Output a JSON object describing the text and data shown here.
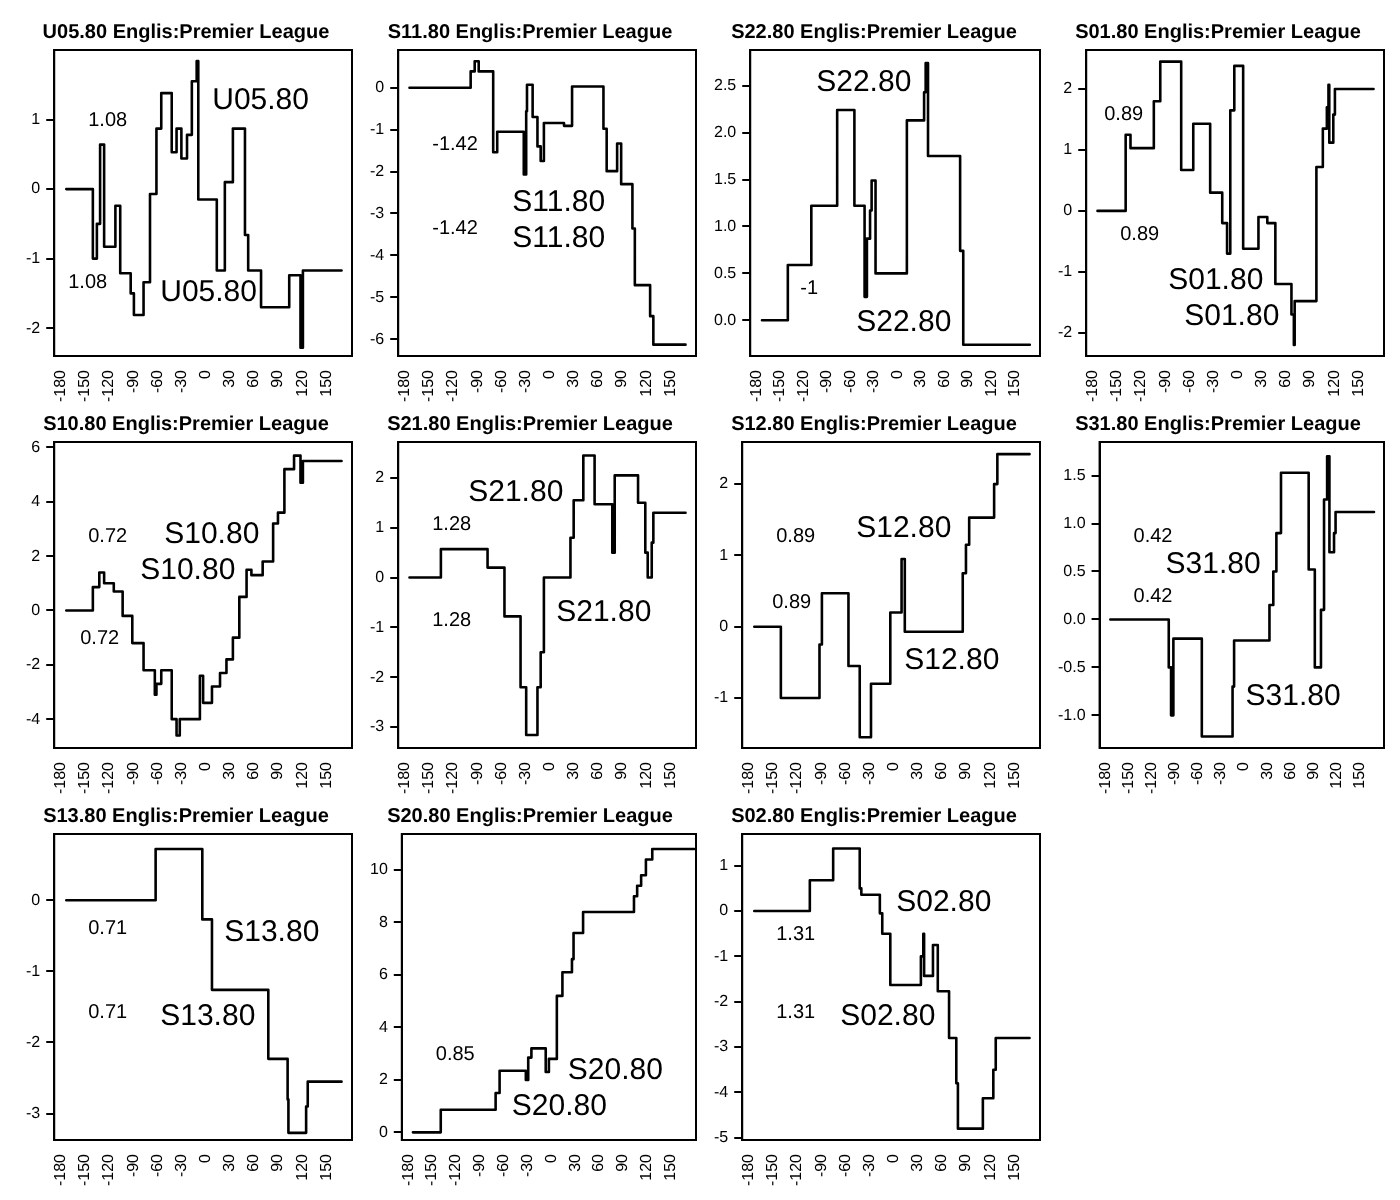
{
  "chart_data": [
    {
      "type": "step",
      "title": "U05.80 Englis:Premier League",
      "color": "#000000",
      "xlim": [
        -188,
        182
      ],
      "xticks": [
        -180,
        -150,
        -120,
        -90,
        -60,
        -30,
        0,
        30,
        60,
        90,
        120,
        150
      ],
      "ylim": [
        -2.4,
        2.0
      ],
      "yticks": [
        -2,
        -1,
        0,
        1
      ],
      "annotations": [
        "1.08",
        "1.08",
        "U05.80",
        "U05.80"
      ],
      "x": [
        -173,
        -140,
        -135,
        -131,
        -126,
        -112,
        -106,
        -93,
        -89,
        -77,
        -69,
        -61,
        -55,
        -42,
        -36,
        -30,
        -23,
        -17,
        -11,
        -9,
        14,
        24,
        34,
        49,
        53,
        69,
        104,
        118,
        121,
        169
      ],
      "values": [
        0,
        -1.0,
        -0.5,
        0.64,
        -0.83,
        -0.24,
        -1.21,
        -1.5,
        -1.81,
        -1.34,
        -0.07,
        0.87,
        1.38,
        0.53,
        0.87,
        0.44,
        0.78,
        1.55,
        1.84,
        -0.15,
        -1.17,
        0.1,
        0.87,
        -0.66,
        -1.17,
        -1.7,
        -1.24,
        -2.28,
        -1.17,
        -1.17
      ]
    },
    {
      "type": "step",
      "title": "S11.80 Englis:Premier League",
      "color": "#000000",
      "xlim": [
        -188,
        182
      ],
      "xticks": [
        -180,
        -150,
        -120,
        -90,
        -60,
        -30,
        0,
        30,
        60,
        90,
        120,
        150
      ],
      "ylim": [
        -6.4,
        0.9
      ],
      "yticks": [
        -6,
        -5,
        -4,
        -3,
        -2,
        -1,
        0
      ],
      "annotations": [
        "-1.42",
        "-1.42",
        "S11.80",
        "S11.80"
      ],
      "x": [
        -174,
        -98,
        -93,
        -88,
        -70,
        -65,
        -32,
        -29,
        -28,
        -21,
        -15,
        -11,
        -7,
        -3,
        18,
        28,
        67,
        71,
        84,
        89,
        103,
        106,
        125,
        129,
        169
      ],
      "values": [
        0,
        0.39,
        0.63,
        0.39,
        -1.54,
        -1.05,
        -2.07,
        -0.56,
        0.07,
        -0.7,
        -1.4,
        -1.75,
        -0.84,
        -0.84,
        -0.91,
        0.03,
        -0.98,
        -1.99,
        -1.33,
        -2.3,
        -3.36,
        -4.71,
        -5.45,
        -6.13,
        -6.13
      ]
    },
    {
      "type": "step",
      "title": "S22.80 Englis:Premier League",
      "color": "#000000",
      "xlim": [
        -188,
        182
      ],
      "xticks": [
        -180,
        -150,
        -120,
        -90,
        -60,
        -30,
        0,
        30,
        60,
        90,
        120,
        150
      ],
      "ylim": [
        -0.38,
        2.88
      ],
      "yticks": [
        {
          "value": 0,
          "label": "0.0"
        },
        {
          "value": 0.5,
          "label": "0.5"
        },
        {
          "value": 1,
          "label": "1.0"
        },
        {
          "value": 1.5,
          "label": "1.5"
        },
        {
          "value": 2,
          "label": "2.0"
        },
        {
          "value": 2.5,
          "label": "2.5"
        }
      ],
      "annotations": [
        "-1",
        "S22.80",
        "S22.80"
      ],
      "x": [
        -173,
        -140,
        -110,
        -77,
        -55,
        -42,
        -39,
        -35,
        -33,
        -28,
        12,
        34,
        36,
        39,
        80,
        84,
        169
      ],
      "values": [
        0,
        0.59,
        1.22,
        2.24,
        1.22,
        0.25,
        0.87,
        1.17,
        1.49,
        0.5,
        2.13,
        2.43,
        2.74,
        1.75,
        0.74,
        -0.26,
        -0.26
      ]
    },
    {
      "type": "step",
      "title": "S01.80 Englis:Premier League",
      "color": "#000000",
      "xlim": [
        -188,
        182
      ],
      "xticks": [
        -180,
        -150,
        -120,
        -90,
        -60,
        -30,
        0,
        30,
        60,
        90,
        120,
        150
      ],
      "ylim": [
        -2.38,
        2.64
      ],
      "yticks": [
        -2,
        -1,
        0,
        1,
        2
      ],
      "annotations": [
        "0.89",
        "0.89",
        "S01.80",
        "S01.80"
      ],
      "x": [
        -174,
        -139,
        -133,
        -104,
        -96,
        -70,
        -55,
        -34,
        -19,
        -13,
        -9,
        -4,
        7,
        26,
        37,
        47,
        67,
        70,
        71,
        98,
        106,
        111,
        113,
        114,
        119,
        121,
        169
      ],
      "values": [
        0,
        1.25,
        1.03,
        1.8,
        2.45,
        0.67,
        1.43,
        0.3,
        -0.2,
        -0.7,
        1.65,
        2.38,
        -0.62,
        -0.1,
        -0.2,
        -1.2,
        -1.7,
        -2.2,
        -1.48,
        0.72,
        1.35,
        1.7,
        2.07,
        1.12,
        1.58,
        2.0,
        2.0
      ]
    },
    {
      "type": "step",
      "title": "S10.80 Englis:Premier League",
      "color": "#000000",
      "xlim": [
        -188,
        182
      ],
      "xticks": [
        -180,
        -150,
        -120,
        -90,
        -60,
        -30,
        0,
        30,
        60,
        90,
        120,
        150
      ],
      "ylim": [
        -5.06,
        6.2
      ],
      "yticks": [
        -4,
        -2,
        0,
        2,
        4,
        6
      ],
      "annotations": [
        "0.72",
        "0.72",
        "S10.80",
        "S10.80"
      ],
      "x": [
        -173,
        -140,
        -132,
        -126,
        -114,
        -103,
        -91,
        -77,
        -63,
        -61,
        -55,
        -42,
        -36,
        -32,
        -7,
        -3,
        8,
        18,
        26,
        34,
        42,
        51,
        57,
        71,
        84,
        90,
        98,
        110,
        118,
        121,
        169
      ],
      "values": [
        0,
        0.86,
        1.4,
        1.0,
        0.7,
        -0.2,
        -1.2,
        -2.2,
        -3.1,
        -2.7,
        -2.2,
        -4.0,
        -4.6,
        -4.0,
        -2.4,
        -3.4,
        -2.8,
        -2.3,
        -1.8,
        -1.0,
        0.5,
        1.5,
        1.3,
        1.8,
        3.2,
        3.6,
        5.2,
        5.7,
        4.7,
        5.5,
        5.5
      ]
    },
    {
      "type": "step",
      "title": "S21.80 Englis:Premier League",
      "color": "#000000",
      "xlim": [
        -188,
        182
      ],
      "xticks": [
        -180,
        -150,
        -120,
        -90,
        -60,
        -30,
        0,
        30,
        60,
        90,
        120,
        150
      ],
      "ylim": [
        -3.42,
        2.72
      ],
      "yticks": [
        -3,
        -2,
        -1,
        0,
        1,
        2
      ],
      "annotations": [
        "1.28",
        "1.28",
        "S21.80",
        "S21.80"
      ],
      "x": [
        -174,
        -135,
        -77,
        -56,
        -36,
        -29,
        -15,
        -11,
        -7,
        26,
        30,
        42,
        56,
        78,
        81,
        110,
        119,
        122,
        127,
        129,
        169
      ],
      "values": [
        0,
        0.57,
        0.2,
        -0.78,
        -2.2,
        -3.16,
        -2.2,
        -1.5,
        0,
        0.8,
        1.55,
        2.45,
        1.47,
        0.5,
        2.05,
        1.5,
        0.5,
        0,
        0.7,
        1.3,
        1.3
      ]
    },
    {
      "type": "step",
      "title": "S12.80 Englis:Premier League",
      "color": "#000000",
      "xlim": [
        -188,
        182
      ],
      "xticks": [
        -180,
        -150,
        -120,
        -90,
        -60,
        -30,
        0,
        30,
        60,
        90,
        120,
        150
      ],
      "ylim": [
        -1.7,
        2.59
      ],
      "yticks": [
        -1,
        0,
        1,
        2
      ],
      "annotations": [
        "0.89",
        "0.89",
        "S12.80",
        "S12.80"
      ],
      "x": [
        -173,
        -140,
        -92,
        -89,
        -56,
        -42,
        -28,
        -4,
        10,
        14,
        86,
        90,
        94,
        125,
        129,
        169
      ],
      "values": [
        0,
        -1.0,
        -0.25,
        0.47,
        -0.55,
        -1.55,
        -0.8,
        0.2,
        0.95,
        -0.07,
        0.75,
        1.15,
        1.53,
        2.0,
        2.42,
        2.42
      ]
    },
    {
      "type": "step",
      "title": "S31.80 Englis:Premier League",
      "color": "#000000",
      "xlim": [
        -188,
        182
      ],
      "xticks": [
        -180,
        -150,
        -120,
        -90,
        -60,
        -30,
        0,
        30,
        60,
        90,
        120,
        150
      ],
      "ylim": [
        -1.34,
        1.85
      ],
      "yticks": [
        {
          "value": -1,
          "label": "-1.0"
        },
        {
          "value": -0.5,
          "label": "-0.5"
        },
        {
          "value": 0,
          "label": "0.0"
        },
        {
          "value": 0.5,
          "label": "0.5"
        },
        {
          "value": 1,
          "label": "1.0"
        },
        {
          "value": 1.5,
          "label": "1.5"
        }
      ],
      "annotations": [
        "0.42",
        "0.42",
        "S31.80",
        "S31.80"
      ],
      "x": [
        -174,
        -98,
        -95,
        -92,
        -55,
        -15,
        -13,
        33,
        38,
        42,
        48,
        84,
        92,
        100,
        104,
        108,
        111,
        117,
        119,
        169
      ],
      "values": [
        0,
        -0.5,
        -1.0,
        -0.2,
        -1.22,
        -0.7,
        -0.22,
        0.15,
        0.5,
        0.9,
        1.53,
        0.52,
        -0.5,
        0.1,
        1.25,
        1.7,
        0.7,
        0.9,
        1.12,
        1.12
      ]
    },
    {
      "type": "step",
      "title": "S13.80 Englis:Premier League",
      "color": "#000000",
      "xlim": [
        -188,
        182
      ],
      "xticks": [
        -180,
        -150,
        -120,
        -90,
        -60,
        -30,
        0,
        30,
        60,
        90,
        120,
        150
      ],
      "ylim": [
        -3.37,
        0.93
      ],
      "yticks": [
        -3,
        -2,
        -1,
        0
      ],
      "annotations": [
        "0.71",
        "0.71",
        "S13.80",
        "S13.80"
      ],
      "x": [
        -173,
        -62,
        -4,
        8,
        78,
        102,
        103,
        125,
        127,
        169
      ],
      "values": [
        0,
        0.72,
        -0.27,
        -1.26,
        -2.23,
        -2.8,
        -3.27,
        -2.9,
        -2.55,
        -2.55
      ]
    },
    {
      "type": "step",
      "title": "S20.80 Englis:Premier League",
      "color": "#000000",
      "xlim": [
        -188,
        182
      ],
      "xticks": [
        -180,
        -150,
        -120,
        -90,
        -60,
        -30,
        0,
        30,
        60,
        90,
        120,
        150
      ],
      "ylim": [
        -0.29,
        11.37
      ],
      "yticks": [
        0,
        2,
        4,
        6,
        8,
        10
      ],
      "annotations": [
        "0.85",
        "S20.80",
        "S20.80"
      ],
      "x": [
        -174,
        -139,
        -70,
        -65,
        -32,
        -29,
        -25,
        -7,
        -3,
        7,
        14,
        26,
        28,
        40,
        104,
        108,
        113,
        119,
        127,
        180
      ],
      "values": [
        0,
        0.86,
        1.5,
        2.35,
        2.0,
        2.85,
        3.2,
        2.3,
        2.8,
        5.2,
        6.1,
        6.6,
        7.6,
        8.4,
        9.0,
        9.4,
        9.8,
        10.4,
        10.8,
        10.8
      ]
    },
    {
      "type": "step",
      "title": "S02.80 Englis:Premier League",
      "color": "#000000",
      "xlim": [
        -188,
        182
      ],
      "xticks": [
        -180,
        -150,
        -120,
        -90,
        -60,
        -30,
        0,
        30,
        60,
        90,
        120,
        150
      ],
      "ylim": [
        -5.05,
        1.7
      ],
      "yticks": [
        -5,
        -4,
        -3,
        -2,
        -1,
        0,
        1
      ],
      "annotations": [
        "1.31",
        "1.31",
        "S02.80",
        "S02.80"
      ],
      "x": [
        -173,
        -104,
        -75,
        -42,
        -40,
        -17,
        -14,
        -4,
        34,
        37,
        38,
        49,
        55,
        69,
        78,
        80,
        111,
        124,
        127,
        169
      ],
      "values": [
        0,
        0.68,
        1.38,
        0.5,
        0.36,
        -0.05,
        -0.5,
        -1.63,
        -1.0,
        -0.5,
        -1.43,
        -0.75,
        -1.77,
        -2.8,
        -3.8,
        -4.8,
        -4.13,
        -3.5,
        -2.8,
        -2.8
      ]
    }
  ]
}
